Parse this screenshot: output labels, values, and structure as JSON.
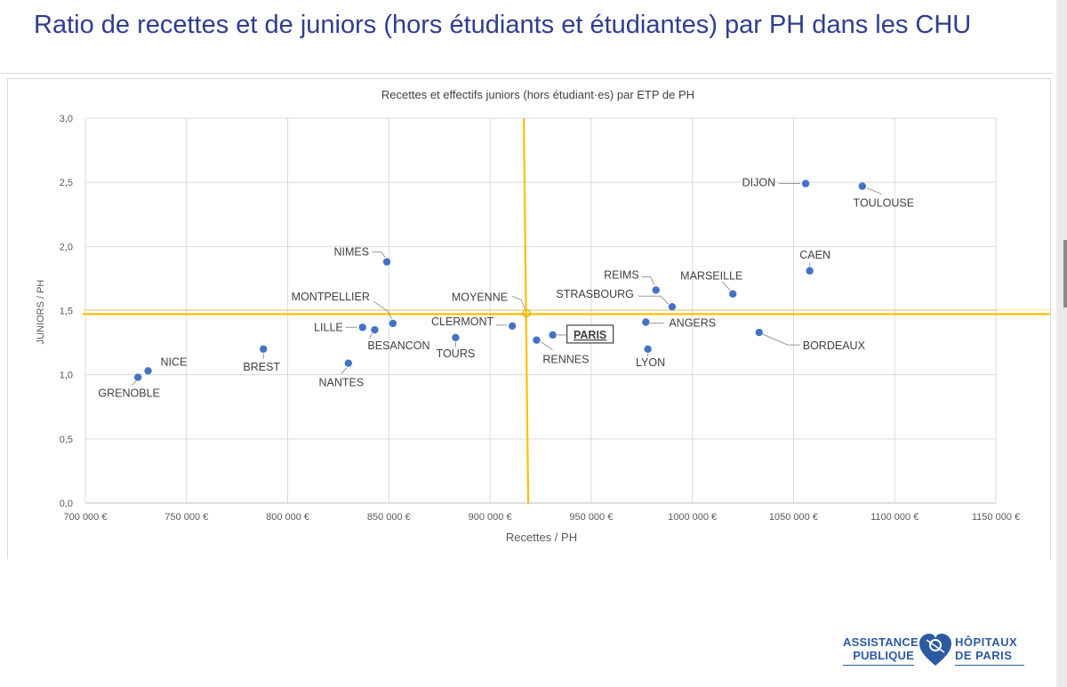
{
  "slide": {
    "title": "Ratio de recettes et de juniors (hors étudiants et étudiantes) par PH dans les CHU"
  },
  "logo": {
    "left_line1": "ASSISTANCE",
    "left_line2": "PUBLIQUE",
    "right_line1": "HÔPITAUX",
    "right_line2": "DE PARIS",
    "color": "#2c5aa0"
  },
  "chart_data": {
    "type": "scatter",
    "title": "Recettes et effectifs juniors (hors étudiant·es) par ETP de PH",
    "xlabel": "Recettes / PH",
    "ylabel": "JUNIORS / PH",
    "xlim": [
      700000,
      1150000
    ],
    "ylim": [
      0,
      3.0
    ],
    "x_ticks": [
      "700 000 €",
      "750 000 €",
      "800 000 €",
      "850 000 €",
      "900 000 €",
      "950 000 €",
      "1000 000 €",
      "1050 000 €",
      "1100 000 €",
      "1150 000 €"
    ],
    "y_ticks": [
      "0,0",
      "0,5",
      "1,0",
      "1,5",
      "2,0",
      "2,5",
      "3,0"
    ],
    "grid": true,
    "point_color": "#4472c4",
    "average_line_color": "#ffc000",
    "average": {
      "name": "MOYENNE",
      "x": 918000,
      "y": 1.48
    },
    "highlighted_point": "PARIS",
    "points": [
      {
        "name": "GRENOBLE",
        "x": 726000,
        "y": 0.98
      },
      {
        "name": "NICE",
        "x": 731000,
        "y": 1.03
      },
      {
        "name": "BREST",
        "x": 788000,
        "y": 1.2
      },
      {
        "name": "NANTES",
        "x": 830000,
        "y": 1.09
      },
      {
        "name": "LILLE",
        "x": 837000,
        "y": 1.37
      },
      {
        "name": "BESANCON",
        "x": 843000,
        "y": 1.35
      },
      {
        "name": "MONTPELLIER",
        "x": 852000,
        "y": 1.4
      },
      {
        "name": "NIMES",
        "x": 849000,
        "y": 1.88
      },
      {
        "name": "TOURS",
        "x": 883000,
        "y": 1.29
      },
      {
        "name": "CLERMONT",
        "x": 911000,
        "y": 1.38
      },
      {
        "name": "RENNES",
        "x": 923000,
        "y": 1.27
      },
      {
        "name": "PARIS",
        "x": 931000,
        "y": 1.31
      },
      {
        "name": "ANGERS",
        "x": 977000,
        "y": 1.41
      },
      {
        "name": "LYON",
        "x": 978000,
        "y": 1.2
      },
      {
        "name": "REIMS",
        "x": 982000,
        "y": 1.66
      },
      {
        "name": "STRASBOURG",
        "x": 990000,
        "y": 1.53
      },
      {
        "name": "MARSEILLE",
        "x": 1020000,
        "y": 1.63
      },
      {
        "name": "BORDEAUX",
        "x": 1033000,
        "y": 1.33
      },
      {
        "name": "DIJON",
        "x": 1056000,
        "y": 2.49
      },
      {
        "name": "CAEN",
        "x": 1058000,
        "y": 1.81
      },
      {
        "name": "TOULOUSE",
        "x": 1084000,
        "y": 2.47
      }
    ]
  }
}
